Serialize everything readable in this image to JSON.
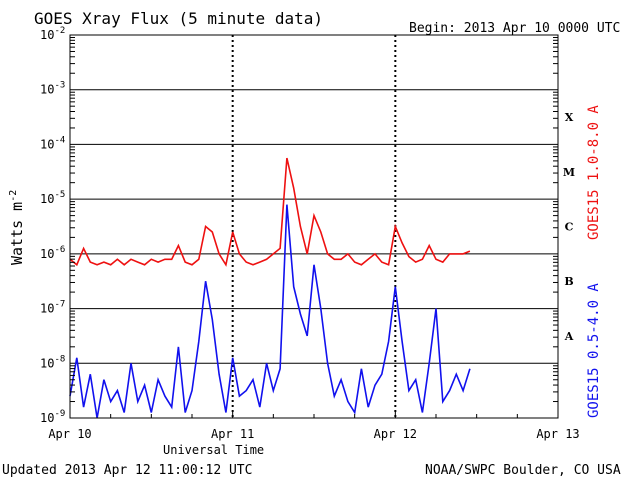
{
  "header": {
    "title": "GOES Xray Flux (5 minute data)",
    "begin": "Begin:  2013 Apr 10 0000 UTC"
  },
  "footer": {
    "updated": "Updated 2013 Apr 12 11:00:12 UTC",
    "credit": "NOAA/SWPC Boulder, CO USA"
  },
  "colors": {
    "long": "#ee1111",
    "short": "#1111ee",
    "axes": "#000000"
  },
  "chart_data": {
    "type": "line",
    "title": "GOES Xray Flux (5 minute data)",
    "xlabel": "Universal Time",
    "ylabel": "Watts m",
    "ylabel_sup": "-2",
    "y_scale": "log",
    "ylim": [
      1e-09,
      0.01
    ],
    "xlim_hours": [
      0,
      72
    ],
    "x_tick_labels": [
      "Apr 10",
      "Apr 11",
      "Apr 12",
      "Apr 13"
    ],
    "y_tick_labels": [
      {
        "base": "10",
        "exp": "-9"
      },
      {
        "base": "10",
        "exp": "-8"
      },
      {
        "base": "10",
        "exp": "-7"
      },
      {
        "base": "10",
        "exp": "-6"
      },
      {
        "base": "10",
        "exp": "-5"
      },
      {
        "base": "10",
        "exp": "-4"
      },
      {
        "base": "10",
        "exp": "-3"
      },
      {
        "base": "10",
        "exp": "-2"
      }
    ],
    "flare_classes": [
      "A",
      "B",
      "C",
      "M",
      "X"
    ],
    "grid": "horizontal at decades; dotted vertical at day boundaries",
    "series": [
      {
        "name": "GOES15 1.0-8.0 A",
        "color": "#ee1111",
        "x_hours": [
          0,
          1,
          2,
          3,
          4,
          5,
          6,
          7,
          8,
          9,
          10,
          11,
          12,
          13,
          14,
          15,
          16,
          17,
          18,
          19,
          20,
          21,
          22,
          23,
          24,
          25,
          26,
          27,
          28,
          29,
          30,
          31,
          32,
          33,
          34,
          35,
          36,
          37,
          38,
          39,
          40,
          41,
          42,
          43,
          44,
          45,
          46,
          47,
          48,
          49,
          50,
          51,
          52,
          53,
          54,
          55,
          56,
          57,
          58,
          59
        ],
        "log10_flux": [
          -6.1,
          -6.2,
          -5.9,
          -6.15,
          -6.2,
          -6.15,
          -6.2,
          -6.1,
          -6.2,
          -6.1,
          -6.15,
          -6.2,
          -6.1,
          -6.15,
          -6.1,
          -6.1,
          -5.85,
          -6.15,
          -6.2,
          -6.1,
          -5.5,
          -5.6,
          -6.0,
          -6.2,
          -5.6,
          -6.0,
          -6.15,
          -6.2,
          -6.15,
          -6.1,
          -6.0,
          -5.9,
          -4.25,
          -4.8,
          -5.5,
          -6.0,
          -5.3,
          -5.6,
          -6.0,
          -6.1,
          -6.1,
          -6.0,
          -6.15,
          -6.2,
          -6.1,
          -6.0,
          -6.15,
          -6.2,
          -5.5,
          -5.8,
          -6.05,
          -6.15,
          -6.1,
          -5.85,
          -6.1,
          -6.15,
          -6.0,
          -6.0,
          -6.0,
          -5.95
        ]
      },
      {
        "name": "GOES15 0.5-4.0 A",
        "color": "#1111ee",
        "x_hours": [
          0,
          1,
          2,
          3,
          4,
          5,
          6,
          7,
          8,
          9,
          10,
          11,
          12,
          13,
          14,
          15,
          16,
          17,
          18,
          19,
          20,
          21,
          22,
          23,
          24,
          25,
          26,
          27,
          28,
          29,
          30,
          31,
          32,
          33,
          34,
          35,
          36,
          37,
          38,
          39,
          40,
          41,
          42,
          43,
          44,
          45,
          46,
          47,
          48,
          49,
          50,
          51,
          52,
          53,
          54,
          55,
          56,
          57,
          58,
          59
        ],
        "log10_flux": [
          -8.6,
          -7.9,
          -8.8,
          -8.2,
          -9.0,
          -8.3,
          -8.7,
          -8.5,
          -8.9,
          -8.0,
          -8.7,
          -8.4,
          -8.9,
          -8.3,
          -8.6,
          -8.8,
          -7.7,
          -8.9,
          -8.5,
          -7.6,
          -6.5,
          -7.2,
          -8.2,
          -8.9,
          -7.9,
          -8.6,
          -8.5,
          -8.3,
          -8.8,
          -8.0,
          -8.5,
          -8.1,
          -5.1,
          -6.6,
          -7.1,
          -7.5,
          -6.2,
          -7.0,
          -8.0,
          -8.6,
          -8.3,
          -8.7,
          -8.9,
          -8.1,
          -8.8,
          -8.4,
          -8.2,
          -7.6,
          -6.6,
          -7.6,
          -8.5,
          -8.3,
          -8.9,
          -8.0,
          -7.0,
          -8.7,
          -8.5,
          -8.2,
          -8.5,
          -8.1
        ]
      }
    ]
  }
}
